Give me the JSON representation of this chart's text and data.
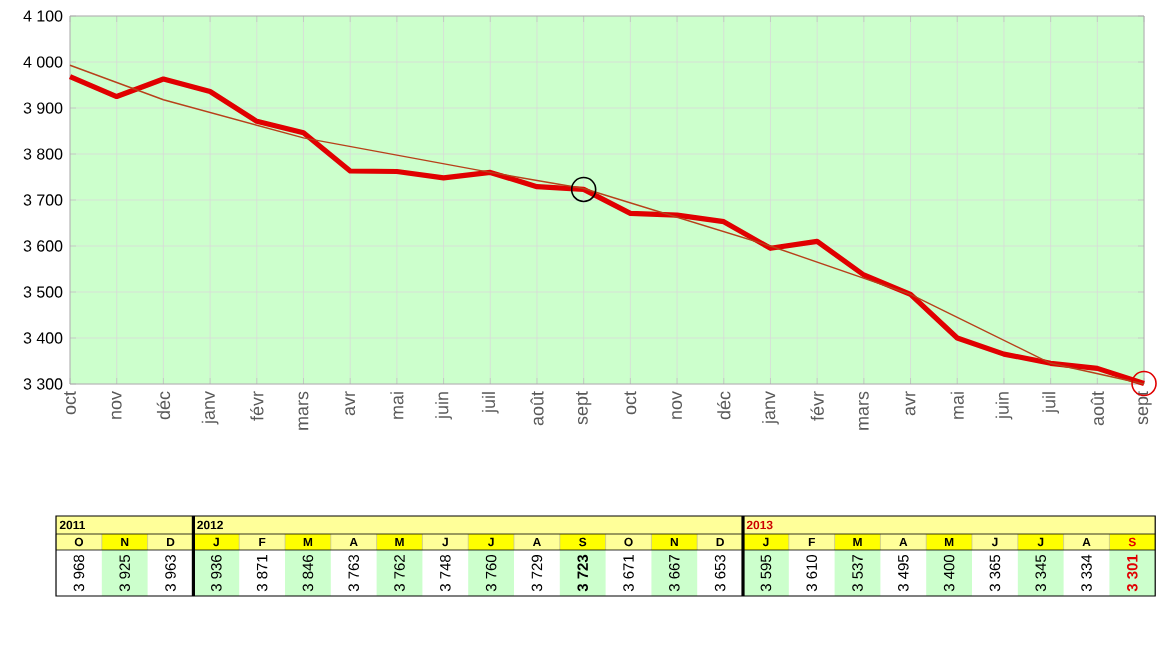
{
  "chart_data": {
    "type": "line",
    "categories": [
      "oct",
      "nov",
      "déc",
      "janv",
      "févr",
      "mars",
      "avr",
      "mai",
      "juin",
      "juil",
      "août",
      "sept",
      "oct",
      "nov",
      "déc",
      "janv",
      "févr",
      "mars",
      "avr",
      "mai",
      "juin",
      "juil",
      "août",
      "sept"
    ],
    "ylim": [
      3300,
      4100
    ],
    "yticks": [
      {
        "value": 3300,
        "label": "3 300"
      },
      {
        "value": 3400,
        "label": "3 400"
      },
      {
        "value": 3500,
        "label": "3 500"
      },
      {
        "value": 3600,
        "label": "3 600"
      },
      {
        "value": 3700,
        "label": "3 700"
      },
      {
        "value": 3800,
        "label": "3 800"
      },
      {
        "value": 3900,
        "label": "3 900"
      },
      {
        "value": 4000,
        "label": "4 000"
      },
      {
        "value": 4100,
        "label": "4 100"
      }
    ],
    "grid": true,
    "series": [
      {
        "type": "line",
        "color": "#e00000",
        "values": [
          3968,
          3925,
          3963,
          3936,
          3871,
          3846,
          3763,
          3762,
          3748,
          3760,
          3729,
          3723,
          3671,
          3667,
          3653,
          3595,
          3610,
          3537,
          3495,
          3400,
          3365,
          3345,
          3334,
          3301
        ],
        "value_labels": [
          "3 968",
          "3 925",
          "3 963",
          "3 936",
          "3 871",
          "3 846",
          "3 763",
          "3 762",
          "3 748",
          "3 760",
          "3 729",
          "3 723",
          "3 671",
          "3 667",
          "3 653",
          "3 595",
          "3 610",
          "3 537",
          "3 495",
          "3 400",
          "3 365",
          "3 345",
          "3 334",
          "3 301"
        ]
      },
      {
        "type": "line",
        "color": "#b8401a",
        "values": [
          3993,
          null,
          3918,
          null,
          null,
          3835,
          null,
          null,
          null,
          3760,
          null,
          3725,
          null,
          null,
          null,
          3600,
          null,
          null,
          3495,
          null,
          null,
          3345,
          null,
          3300
        ]
      },
      {
        "type": "scatter",
        "marker": "circle",
        "color": "#000000",
        "values": [
          null,
          null,
          null,
          null,
          null,
          null,
          null,
          null,
          null,
          null,
          null,
          3723,
          null,
          null,
          null,
          null,
          null,
          null,
          null,
          null,
          null,
          null,
          null,
          null
        ]
      },
      {
        "type": "scatter",
        "marker": "circle",
        "color": "#e00000",
        "values": [
          null,
          null,
          null,
          null,
          null,
          null,
          null,
          null,
          null,
          null,
          null,
          null,
          null,
          null,
          null,
          null,
          null,
          null,
          null,
          null,
          null,
          null,
          null,
          3301
        ]
      }
    ],
    "annotations": [
      "2011",
      "2012",
      "2013",
      "O",
      "N",
      "D",
      "J",
      "F",
      "M",
      "A",
      "M",
      "J",
      "J",
      "A",
      "S",
      "O",
      "N",
      "D",
      "J",
      "F",
      "M",
      "A",
      "M",
      "J",
      "J",
      "A",
      "S"
    ]
  }
}
